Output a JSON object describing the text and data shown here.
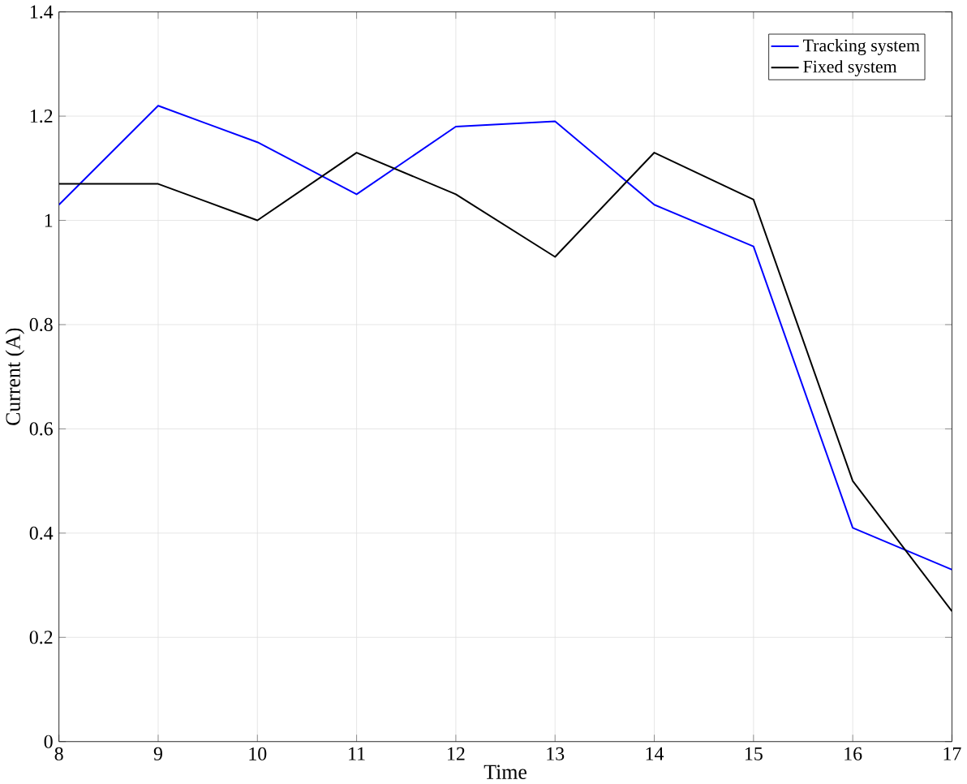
{
  "chart_data": {
    "type": "line",
    "xlabel": "Time",
    "ylabel": "Current (A)",
    "x": [
      8,
      9,
      10,
      11,
      12,
      13,
      14,
      15,
      16,
      17
    ],
    "series": [
      {
        "name": "Tracking system",
        "color": "#0000ff",
        "values": [
          1.03,
          1.22,
          1.15,
          1.05,
          1.18,
          1.19,
          1.03,
          0.95,
          0.41,
          0.33
        ]
      },
      {
        "name": "Fixed system",
        "color": "#000000",
        "values": [
          1.07,
          1.07,
          1.0,
          1.13,
          1.05,
          0.93,
          1.13,
          1.04,
          0.5,
          0.25
        ]
      }
    ],
    "xlim": [
      8,
      17
    ],
    "xticks": [
      8,
      9,
      10,
      11,
      12,
      13,
      14,
      15,
      16,
      17
    ],
    "ylim": [
      0,
      1.4
    ],
    "yticks": [
      0,
      0.2,
      0.4,
      0.6,
      0.8,
      1,
      1.2,
      1.4
    ],
    "grid": true,
    "legend": "top right",
    "marker": "none",
    "line_style": "solid"
  }
}
